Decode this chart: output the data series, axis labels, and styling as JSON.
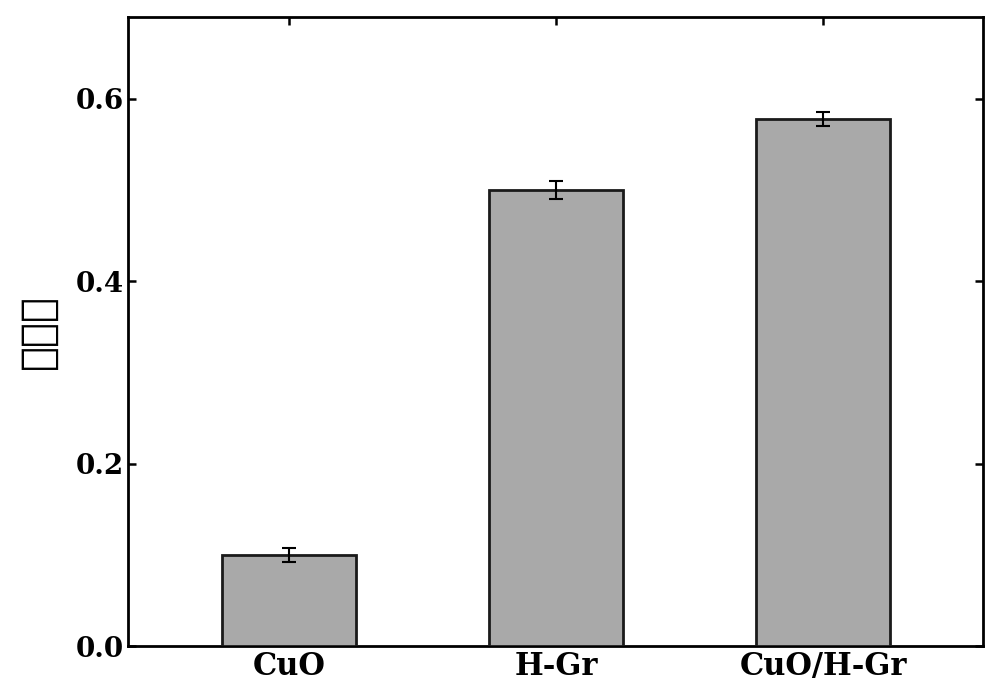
{
  "categories": [
    "CuO",
    "H-Gr",
    "CuO/H-Gr"
  ],
  "values": [
    0.1,
    0.5,
    0.578
  ],
  "errors": [
    0.008,
    0.01,
    0.008
  ],
  "bar_color": "#A9A9A9",
  "bar_edgecolor": "#1a1a1a",
  "bar_linewidth": 2.0,
  "bar_width": 0.5,
  "ylabel": "吸光度",
  "ylabel_fontsize": 30,
  "tick_fontsize": 20,
  "xtick_fontsize": 22,
  "ylim": [
    0.0,
    0.69
  ],
  "yticks": [
    0.0,
    0.2,
    0.4,
    0.6
  ],
  "error_capsize": 5,
  "error_linewidth": 1.5,
  "error_capthick": 1.5,
  "figure_facecolor": "#ffffff",
  "axes_facecolor": "#ffffff",
  "spine_linewidth": 2.0
}
